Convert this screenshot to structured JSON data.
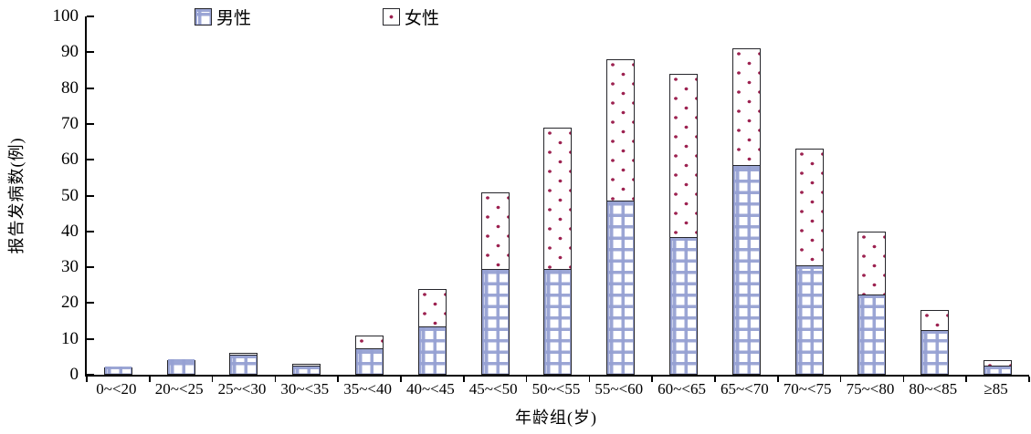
{
  "chart_data": {
    "type": "bar",
    "stacked": true,
    "title": "",
    "categories": [
      "0~<20",
      "20~<25",
      "25~<30",
      "30~<35",
      "35~<40",
      "40~<45",
      "45~<50",
      "50~<55",
      "55~<60",
      "60~<65",
      "65~<70",
      "70~<75",
      "75~<80",
      "80~<85",
      "≥85"
    ],
    "series": [
      {
        "name": "男性",
        "pattern": "blue-grid",
        "color": "#96a1d3",
        "values": [
          2,
          4,
          5,
          2,
          7,
          13,
          29,
          29,
          48,
          38,
          58,
          30,
          22,
          12,
          2
        ]
      },
      {
        "name": "女性",
        "pattern": "red-dots",
        "color": "#9c2150",
        "values": [
          0,
          0,
          1,
          1,
          4,
          11,
          22,
          40,
          40,
          46,
          33,
          33,
          18,
          6,
          2
        ]
      }
    ],
    "xlabel": "年龄组(岁)",
    "ylabel": "报告发病数(例)",
    "ylim": [
      0,
      100
    ],
    "yticks": [
      0,
      10,
      20,
      30,
      40,
      50,
      60,
      70,
      80,
      90,
      100
    ],
    "legend_position": "top",
    "grid": false,
    "axis_color": "#000000",
    "bar_border_color": "#26262b"
  }
}
